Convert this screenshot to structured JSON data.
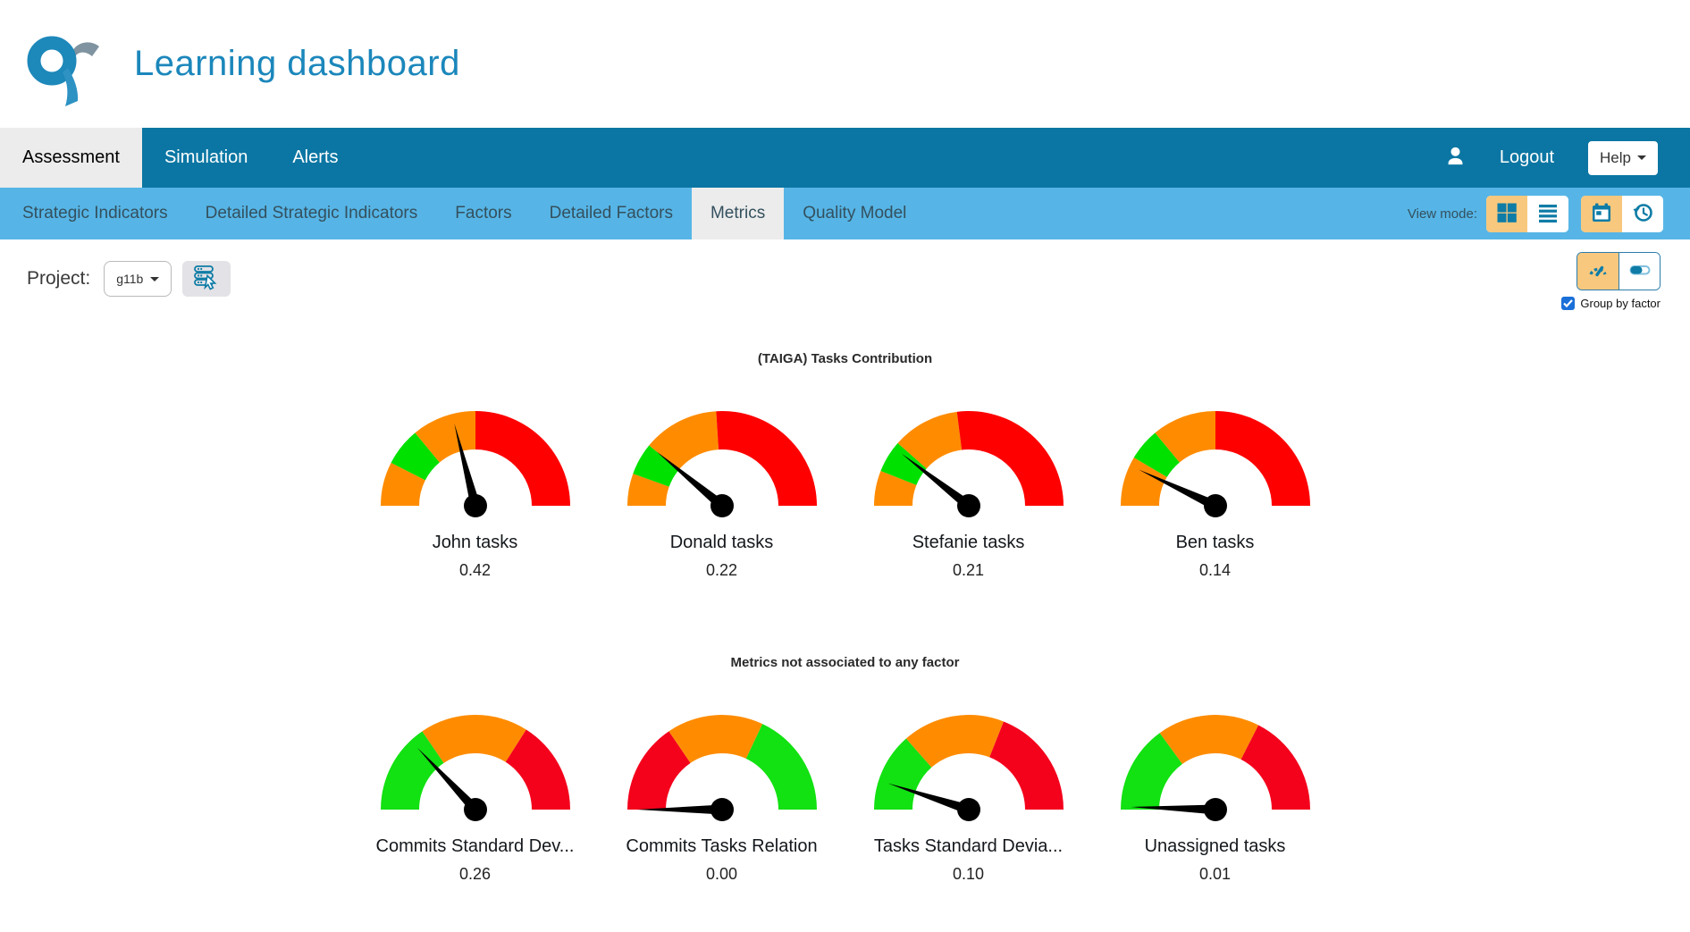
{
  "header": {
    "title": "Learning dashboard"
  },
  "topnav": {
    "tabs": [
      {
        "label": "Assessment",
        "active": true
      },
      {
        "label": "Simulation",
        "active": false
      },
      {
        "label": "Alerts",
        "active": false
      }
    ],
    "logout_label": "Logout",
    "help_label": "Help"
  },
  "subnav": {
    "tabs": [
      {
        "label": "Strategic Indicators",
        "active": false
      },
      {
        "label": "Detailed Strategic Indicators",
        "active": false
      },
      {
        "label": "Factors",
        "active": false
      },
      {
        "label": "Detailed Factors",
        "active": false
      },
      {
        "label": "Metrics",
        "active": true
      },
      {
        "label": "Quality Model",
        "active": false
      }
    ],
    "view_mode_label": "View mode:",
    "view_buttons": [
      {
        "icon": "grid-view-icon",
        "active": true
      },
      {
        "icon": "list-view-icon",
        "active": false
      },
      {
        "icon": "calendar-view-icon",
        "active": true
      },
      {
        "icon": "history-view-icon",
        "active": false
      }
    ]
  },
  "toolbar": {
    "project_label": "Project:",
    "project_value": "g11b"
  },
  "display_controls": {
    "buttons": [
      {
        "icon": "gauge-view-icon",
        "active": true
      },
      {
        "icon": "slider-view-icon",
        "active": false
      }
    ],
    "group_by_factor": {
      "label": "Group by factor",
      "checked": true
    }
  },
  "sections": [
    {
      "title": "(TAIGA) Tasks Contribution",
      "gauges": [
        {
          "label": "John tasks",
          "value": "0.42",
          "value_num": 0.42,
          "segments": [
            {
              "from": 0,
              "to": 0.15,
              "color": "#ff8c00"
            },
            {
              "from": 0.15,
              "to": 0.28,
              "color": "#00e100"
            },
            {
              "from": 0.28,
              "to": 0.5,
              "color": "#ff8c00"
            },
            {
              "from": 0.5,
              "to": 1,
              "color": "#ff0000"
            }
          ]
        },
        {
          "label": "Donald tasks",
          "value": "0.22",
          "value_num": 0.22,
          "segments": [
            {
              "from": 0,
              "to": 0.11,
              "color": "#ff8c00"
            },
            {
              "from": 0.11,
              "to": 0.22,
              "color": "#00e100"
            },
            {
              "from": 0.22,
              "to": 0.48,
              "color": "#ff8c00"
            },
            {
              "from": 0.48,
              "to": 1,
              "color": "#ff0000"
            }
          ]
        },
        {
          "label": "Stefanie tasks",
          "value": "0.21",
          "value_num": 0.21,
          "segments": [
            {
              "from": 0,
              "to": 0.12,
              "color": "#ff8c00"
            },
            {
              "from": 0.12,
              "to": 0.23,
              "color": "#00e100"
            },
            {
              "from": 0.23,
              "to": 0.46,
              "color": "#ff8c00"
            },
            {
              "from": 0.46,
              "to": 1,
              "color": "#ff0000"
            }
          ]
        },
        {
          "label": "Ben tasks",
          "value": "0.14",
          "value_num": 0.14,
          "segments": [
            {
              "from": 0,
              "to": 0.17,
              "color": "#ff8c00"
            },
            {
              "from": 0.17,
              "to": 0.28,
              "color": "#00e100"
            },
            {
              "from": 0.28,
              "to": 0.5,
              "color": "#ff8c00"
            },
            {
              "from": 0.5,
              "to": 1,
              "color": "#ff0000"
            }
          ]
        }
      ]
    },
    {
      "title": "Metrics not associated to any factor",
      "gauges": [
        {
          "label": "Commits Standard Dev...",
          "value": "0.26",
          "value_num": 0.26,
          "segments": [
            {
              "from": 0,
              "to": 0.31,
              "color": "#12e112"
            },
            {
              "from": 0.31,
              "to": 0.68,
              "color": "#ff8c00"
            },
            {
              "from": 0.68,
              "to": 1,
              "color": "#f4011c"
            }
          ]
        },
        {
          "label": "Commits Tasks Relation",
          "value": "0.00",
          "value_num": 0.0,
          "segments": [
            {
              "from": 0,
              "to": 0.31,
              "color": "#f4011c"
            },
            {
              "from": 0.31,
              "to": 0.64,
              "color": "#ff8c00"
            },
            {
              "from": 0.64,
              "to": 1,
              "color": "#12e112"
            }
          ]
        },
        {
          "label": "Tasks Standard Devia...",
          "value": "0.10",
          "value_num": 0.1,
          "segments": [
            {
              "from": 0,
              "to": 0.27,
              "color": "#12e112"
            },
            {
              "from": 0.27,
              "to": 0.62,
              "color": "#ff8c00"
            },
            {
              "from": 0.62,
              "to": 1,
              "color": "#f4011c"
            }
          ]
        },
        {
          "label": "Unassigned tasks",
          "value": "0.01",
          "value_num": 0.01,
          "segments": [
            {
              "from": 0,
              "to": 0.3,
              "color": "#12e112"
            },
            {
              "from": 0.3,
              "to": 0.65,
              "color": "#ff8c00"
            },
            {
              "from": 0.65,
              "to": 1,
              "color": "#f4011c"
            }
          ]
        }
      ]
    }
  ],
  "chart_data": [
    {
      "type": "gauge",
      "title": "(TAIGA) Tasks Contribution",
      "categories": [
        "John tasks",
        "Donald tasks",
        "Stefanie tasks",
        "Ben tasks"
      ],
      "values": [
        0.42,
        0.22,
        0.21,
        0.14
      ],
      "range": [
        0,
        1
      ]
    },
    {
      "type": "gauge",
      "title": "Metrics not associated to any factor",
      "categories": [
        "Commits Standard Dev...",
        "Commits Tasks Relation",
        "Tasks Standard Devia...",
        "Unassigned tasks"
      ],
      "values": [
        0.26,
        0.0,
        0.1,
        0.01
      ],
      "range": [
        0,
        1
      ]
    }
  ],
  "colors": {
    "topnav_bg": "#0b76a3",
    "subnav_bg": "#56b5e6",
    "active_tab_bg": "#ececec",
    "icon_teal": "#0e7ca6",
    "active_button_orange": "#f8c87e",
    "title_blue": "#1b87bb",
    "checkbox_blue": "#1a6fd8",
    "gauge_orange": "#ff8c00",
    "gauge_green": "#00e100",
    "gauge_red": "#ff0000",
    "needle": "#000000"
  }
}
